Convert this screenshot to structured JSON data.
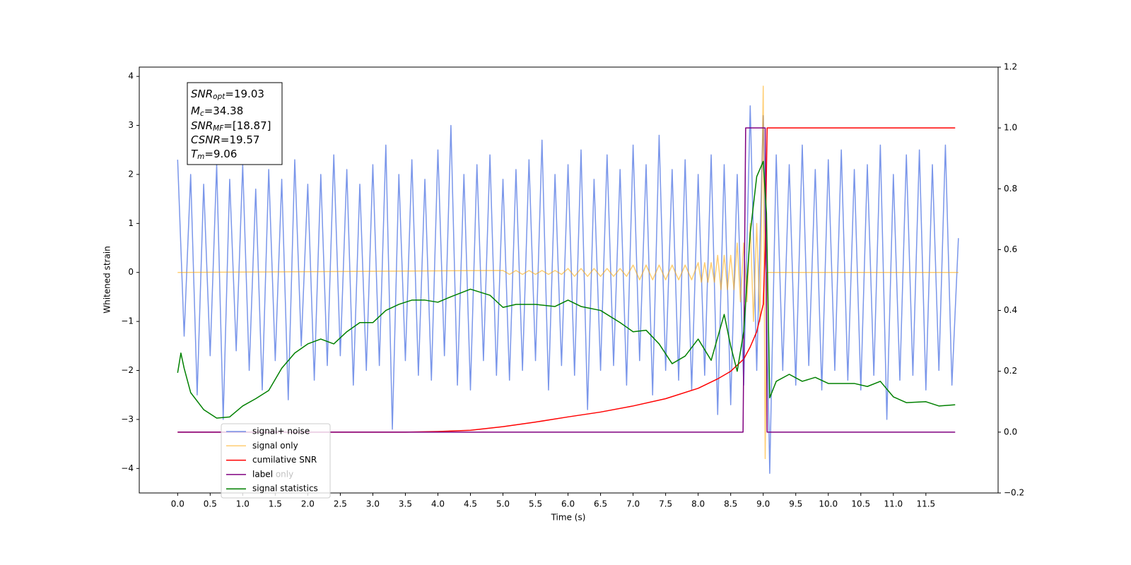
{
  "chart_data": {
    "type": "line",
    "xlabel": "Time (s)",
    "ylabel": "Whitened strain",
    "xlim": [
      -0.59,
      12.61
    ],
    "ylim": [
      -4.5,
      4.19
    ],
    "y2lim": [
      -0.2,
      1.2
    ],
    "xticks": [
      {
        "value": 0,
        "label": "0.0"
      },
      0.5,
      {
        "value": 1,
        "label": "1.0"
      },
      1.5,
      {
        "value": 2,
        "label": "2.0"
      },
      2.5,
      {
        "value": 3,
        "label": "3.0"
      },
      3.5,
      {
        "value": 4,
        "label": "4.0"
      },
      4.5,
      {
        "value": 5,
        "label": "5.0"
      },
      5.5,
      {
        "value": 6,
        "label": "6.0"
      },
      6.5,
      {
        "value": 7,
        "label": "7.0"
      },
      7.5,
      {
        "value": 8,
        "label": "8.0"
      },
      8.5,
      {
        "value": 9,
        "label": "9.0"
      },
      9.5,
      {
        "value": 10,
        "label": "10.0"
      },
      10.5,
      {
        "value": 11,
        "label": "11.0"
      },
      11.5
    ],
    "yticks": [
      {
        "value": -4,
        "label": "−4"
      },
      {
        "value": -3,
        "label": "−3"
      },
      {
        "value": -2,
        "label": "−2"
      },
      {
        "value": -1,
        "label": "−1"
      },
      0,
      1,
      2,
      3,
      4
    ],
    "y2ticks": [
      {
        "value": -0.2,
        "label": "−0.2"
      },
      {
        "value": 0,
        "label": "0.0"
      },
      0.2,
      0.4,
      0.6,
      0.8,
      {
        "value": 1,
        "label": "1.0"
      },
      1.2
    ],
    "legend": "lower left",
    "ghost_labels": [
      "label only"
    ],
    "annotations": [
      {
        "main": "SNR",
        "sub": "opt",
        "rest": "=19.03"
      },
      {
        "main": "M",
        "sub": "c",
        "rest": "=34.38"
      },
      {
        "main": "SNR",
        "sub": "MF",
        "rest": "=[18.87]"
      },
      {
        "main": "CSNR",
        "rest": "=19.57"
      },
      {
        "main": "T",
        "sub": "m",
        "rest": "=9.06"
      }
    ],
    "series": [
      {
        "name": "signal+ noise",
        "color": "royalblue",
        "alpha": 0.7,
        "axis": "y",
        "x": [
          0.0,
          0.1,
          0.2,
          0.3,
          0.4,
          0.5,
          0.6,
          0.7,
          0.8,
          0.9,
          1.0,
          1.1,
          1.2,
          1.3,
          1.4,
          1.5,
          1.6,
          1.7,
          1.8,
          1.9,
          2.0,
          2.1,
          2.2,
          2.3,
          2.4,
          2.5,
          2.6,
          2.7,
          2.8,
          2.9,
          3.0,
          3.1,
          3.2,
          3.3,
          3.4,
          3.5,
          3.6,
          3.7,
          3.8,
          3.9,
          4.0,
          4.1,
          4.2,
          4.3,
          4.4,
          4.5,
          4.6,
          4.7,
          4.8,
          4.9,
          5.0,
          5.1,
          5.2,
          5.3,
          5.4,
          5.5,
          5.6,
          5.7,
          5.8,
          5.9,
          6.0,
          6.1,
          6.2,
          6.3,
          6.4,
          6.5,
          6.6,
          6.7,
          6.8,
          6.9,
          7.0,
          7.1,
          7.2,
          7.3,
          7.4,
          7.5,
          7.6,
          7.7,
          7.8,
          7.9,
          8.0,
          8.1,
          8.2,
          8.3,
          8.4,
          8.5,
          8.6,
          8.7,
          8.8,
          8.9,
          9.0,
          9.1,
          9.2,
          9.3,
          9.4,
          9.5,
          9.6,
          9.7,
          9.8,
          9.9,
          10.0,
          10.1,
          10.2,
          10.3,
          10.4,
          10.5,
          10.6,
          10.7,
          10.8,
          10.9,
          11.0,
          11.1,
          11.2,
          11.3,
          11.4,
          11.5,
          11.6,
          11.7,
          11.8,
          11.9,
          12.0
        ],
        "values": [
          2.3,
          -1.3,
          2.0,
          -2.5,
          1.8,
          -1.7,
          2.2,
          -3.0,
          1.9,
          -1.6,
          2.2,
          -2.0,
          1.7,
          -2.4,
          2.1,
          -1.8,
          1.9,
          -2.6,
          2.3,
          -1.5,
          1.8,
          -2.2,
          2.0,
          -1.9,
          2.4,
          -1.7,
          2.1,
          -2.3,
          1.8,
          -2.0,
          2.2,
          -1.9,
          2.6,
          -3.2,
          2.0,
          -1.8,
          2.3,
          -2.1,
          1.9,
          -2.2,
          2.5,
          -1.7,
          3.0,
          -2.3,
          2.0,
          -2.4,
          2.2,
          -1.8,
          2.4,
          -2.1,
          1.9,
          -2.2,
          2.1,
          -2.0,
          2.3,
          -1.8,
          2.7,
          -2.4,
          2.0,
          -1.9,
          2.2,
          -2.1,
          2.5,
          -2.8,
          1.9,
          -2.0,
          2.4,
          -1.9,
          2.1,
          -2.3,
          2.6,
          -1.8,
          2.2,
          -2.5,
          2.8,
          -2.0,
          2.1,
          -2.2,
          2.3,
          -2.4,
          2.0,
          -2.1,
          2.4,
          -2.9,
          2.2,
          -2.7,
          2.0,
          -2.3,
          3.4,
          -2.0,
          3.2,
          -4.1,
          2.4,
          -2.0,
          2.2,
          -2.3,
          2.6,
          -1.9,
          2.1,
          -2.4,
          2.3,
          -2.0,
          2.5,
          -2.2,
          2.1,
          -2.4,
          2.2,
          -2.1,
          2.6,
          -3.0,
          2.0,
          -2.2,
          2.4,
          -2.1,
          2.5,
          -2.4,
          2.2,
          -2.0,
          2.6,
          -2.3,
          0.7
        ]
      },
      {
        "name": "signal only",
        "color": "orange",
        "alpha": 0.55,
        "axis": "y",
        "x": [
          0,
          5.0,
          5.1,
          5.2,
          5.3,
          5.4,
          5.5,
          5.6,
          5.7,
          5.8,
          5.9,
          6.0,
          6.1,
          6.2,
          6.3,
          6.4,
          6.5,
          6.6,
          6.7,
          6.8,
          6.9,
          7.0,
          7.1,
          7.2,
          7.3,
          7.4,
          7.5,
          7.6,
          7.7,
          7.8,
          7.9,
          8.0,
          8.05,
          8.1,
          8.15,
          8.2,
          8.25,
          8.3,
          8.35,
          8.4,
          8.45,
          8.5,
          8.55,
          8.6,
          8.65,
          8.7,
          8.75,
          8.8,
          8.85,
          8.9,
          8.95,
          9.0,
          9.03,
          9.06,
          12.0
        ],
        "values": [
          0,
          0.04,
          -0.04,
          0.04,
          -0.04,
          0.04,
          -0.04,
          0.04,
          -0.04,
          0.04,
          -0.04,
          0.08,
          -0.08,
          0.08,
          -0.08,
          0.08,
          -0.08,
          0.08,
          -0.08,
          0.08,
          -0.08,
          0.15,
          -0.15,
          0.15,
          -0.15,
          0.15,
          -0.15,
          0.15,
          -0.15,
          0.15,
          -0.15,
          0.2,
          -0.2,
          0.2,
          -0.2,
          0.2,
          -0.2,
          0.35,
          -0.35,
          0.35,
          -0.35,
          0.35,
          -0.35,
          0.6,
          -0.6,
          0.6,
          -0.6,
          1.0,
          -1.0,
          1.0,
          -1.0,
          3.8,
          -3.8,
          0,
          0
        ]
      },
      {
        "name": "cumilative SNR",
        "color": "red",
        "alpha": 1,
        "axis": "y2",
        "x": [
          0,
          3.5,
          4.0,
          4.5,
          5.0,
          5.5,
          6.0,
          6.5,
          7.0,
          7.5,
          8.0,
          8.3,
          8.5,
          8.7,
          8.8,
          8.9,
          9.0,
          9.03,
          9.06,
          11.95
        ],
        "values": [
          0,
          0,
          0.002,
          0.006,
          0.018,
          0.033,
          0.05,
          0.066,
          0.086,
          0.11,
          0.144,
          0.175,
          0.2,
          0.24,
          0.28,
          0.33,
          0.42,
          0.6,
          1.0,
          1.0
        ]
      },
      {
        "name": "label",
        "color": "purple",
        "alpha": 1,
        "axis": "y2",
        "x": [
          0,
          8.69,
          8.73,
          9.03,
          9.06,
          11.95
        ],
        "values": [
          0,
          0,
          1,
          1,
          0,
          0
        ]
      },
      {
        "name": "signal statistics",
        "color": "green",
        "alpha": 1,
        "axis": "y2",
        "x": [
          0,
          0.05,
          0.1,
          0.2,
          0.4,
          0.6,
          0.8,
          1.0,
          1.2,
          1.4,
          1.6,
          1.8,
          2.0,
          2.2,
          2.4,
          2.6,
          2.8,
          3.0,
          3.2,
          3.4,
          3.6,
          3.8,
          4.0,
          4.2,
          4.5,
          4.8,
          5.0,
          5.2,
          5.5,
          5.8,
          6.0,
          6.2,
          6.5,
          6.8,
          7.0,
          7.2,
          7.4,
          7.6,
          7.8,
          8.0,
          8.2,
          8.4,
          8.5,
          8.6,
          8.7,
          8.8,
          8.9,
          9.0,
          9.05,
          9.1,
          9.2,
          9.4,
          9.6,
          9.8,
          10.0,
          10.4,
          10.6,
          10.8,
          11.0,
          11.2,
          11.5,
          11.7,
          11.95
        ],
        "values": [
          0.195,
          0.26,
          0.21,
          0.13,
          0.074,
          0.046,
          0.05,
          0.086,
          0.11,
          0.137,
          0.21,
          0.26,
          0.29,
          0.306,
          0.29,
          0.33,
          0.36,
          0.36,
          0.4,
          0.42,
          0.434,
          0.434,
          0.427,
          0.445,
          0.47,
          0.45,
          0.41,
          0.42,
          0.42,
          0.413,
          0.434,
          0.413,
          0.4,
          0.36,
          0.33,
          0.335,
          0.29,
          0.225,
          0.25,
          0.306,
          0.236,
          0.387,
          0.283,
          0.2,
          0.33,
          0.654,
          0.84,
          0.89,
          0.72,
          0.113,
          0.167,
          0.19,
          0.167,
          0.18,
          0.16,
          0.16,
          0.15,
          0.167,
          0.116,
          0.097,
          0.1,
          0.086,
          0.09
        ]
      }
    ]
  }
}
